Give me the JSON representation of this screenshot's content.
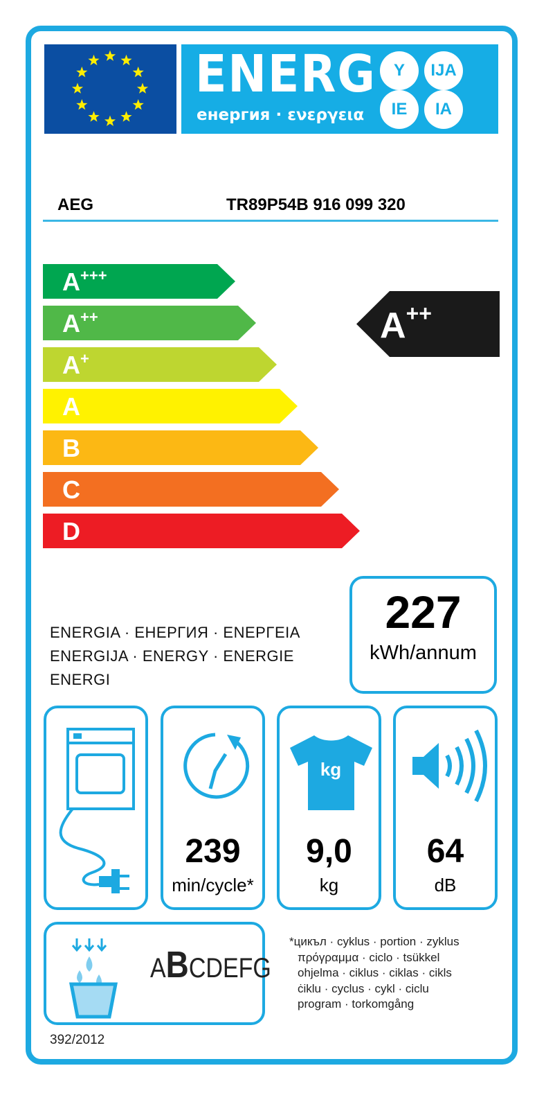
{
  "header": {
    "title": "ENERG",
    "subtitle": "енергия · ενεργεια",
    "suffixes": [
      "Y",
      "IJA",
      "IE",
      "IA"
    ]
  },
  "supplier": "AEG",
  "model": "TR89P54B  916 099 320",
  "scale": [
    {
      "letter": "A",
      "sup": "+++",
      "color": "#00a650"
    },
    {
      "letter": "A",
      "sup": "++",
      "color": "#50b848"
    },
    {
      "letter": "A",
      "sup": "+",
      "color": "#bed630"
    },
    {
      "letter": "A",
      "sup": "",
      "color": "#fff200"
    },
    {
      "letter": "B",
      "sup": "",
      "color": "#fcb814"
    },
    {
      "letter": "C",
      "sup": "",
      "color": "#f36f21"
    },
    {
      "letter": "D",
      "sup": "",
      "color": "#ed1c24"
    }
  ],
  "rating": {
    "letter": "A",
    "sup": "++"
  },
  "energy": {
    "value": "227",
    "unit": "kWh/annum",
    "label_lines": [
      "ENERGIA · ЕНЕРГИЯ · ΕΝΕΡΓΕΙΑ",
      "ENERGIJA · ENERGY · ENERGIE",
      "ENERGI"
    ]
  },
  "params": [
    {
      "icon": "tumble-dryer-plug-icon",
      "value": "",
      "unit": ""
    },
    {
      "icon": "cycle-time-icon",
      "value": "239",
      "unit": "min/cycle*"
    },
    {
      "icon": "tshirt-kg-icon",
      "value": "9,0",
      "unit": "kg",
      "icon_text": "kg"
    },
    {
      "icon": "speaker-noise-icon",
      "value": "64",
      "unit": "dB"
    }
  ],
  "condensation": {
    "icon": "water-basin-icon",
    "classes_first": "A",
    "classes_selected": "B",
    "classes_rest": "CDEFG"
  },
  "footnote": [
    "*цикъл · cyklus · portion · zyklus",
    "πρόγραμμα · ciclo · tsükkel",
    "ohjelma · ciklus · ciklas · cikls",
    "ċiklu · cyclus · cykl · ciclu",
    "program · torkomgång"
  ],
  "regulation": "392/2012",
  "colors": {
    "frame": "#1da9e1",
    "flag": "#0b4ea2",
    "header": "#16ade5"
  }
}
